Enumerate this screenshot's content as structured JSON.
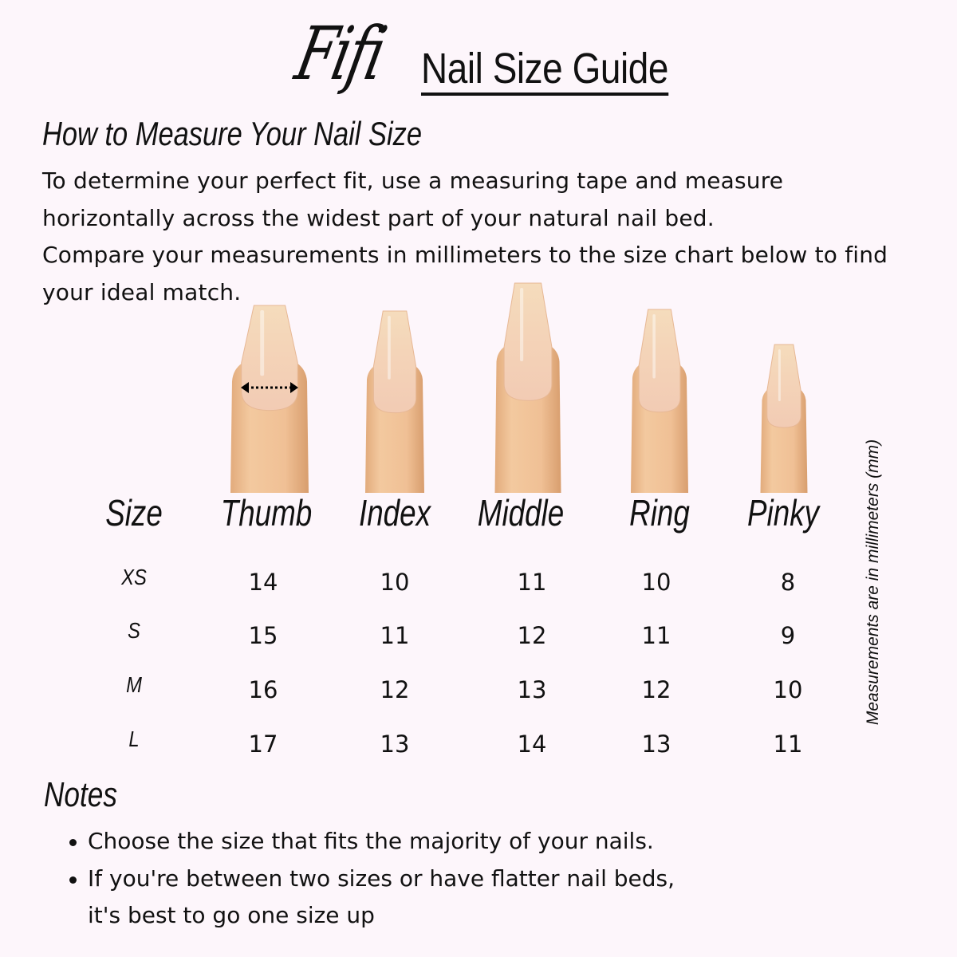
{
  "header": {
    "brand": "Fifi",
    "title": "Nail Size Guide"
  },
  "instructions": {
    "heading": "How to Measure Your Nail Size",
    "lines": [
      "To determine your perfect fit, use a measuring tape and measure",
      "horizontally across the widest part of your natural nail bed.",
      "Compare your measurements in millimeters to the size chart below to find",
      "your ideal match."
    ]
  },
  "colors": {
    "background": "#fdf6fb",
    "skin": "#f0c298",
    "nail": "#f6d6bd"
  },
  "size_table": {
    "columns": [
      "Size",
      "Thumb",
      "Index",
      "Middle",
      "Ring",
      "Pinky"
    ],
    "rows": [
      {
        "size": "XS",
        "values": [
          "14",
          "10",
          "11",
          "10",
          "8"
        ]
      },
      {
        "size": "S",
        "values": [
          "15",
          "11",
          "12",
          "11",
          "9"
        ]
      },
      {
        "size": "M",
        "values": [
          "16",
          "12",
          "13",
          "12",
          "10"
        ]
      },
      {
        "size": "L",
        "values": [
          "17",
          "13",
          "14",
          "13",
          "11"
        ]
      }
    ],
    "unit_note": "Measurements are in millimeters (mm)"
  },
  "notes": {
    "heading": "Notes",
    "items": [
      "Choose the size that fits the majority of your nails.",
      "If you're between two sizes or have flatter nail beds,",
      "it's best to go one size up"
    ]
  }
}
